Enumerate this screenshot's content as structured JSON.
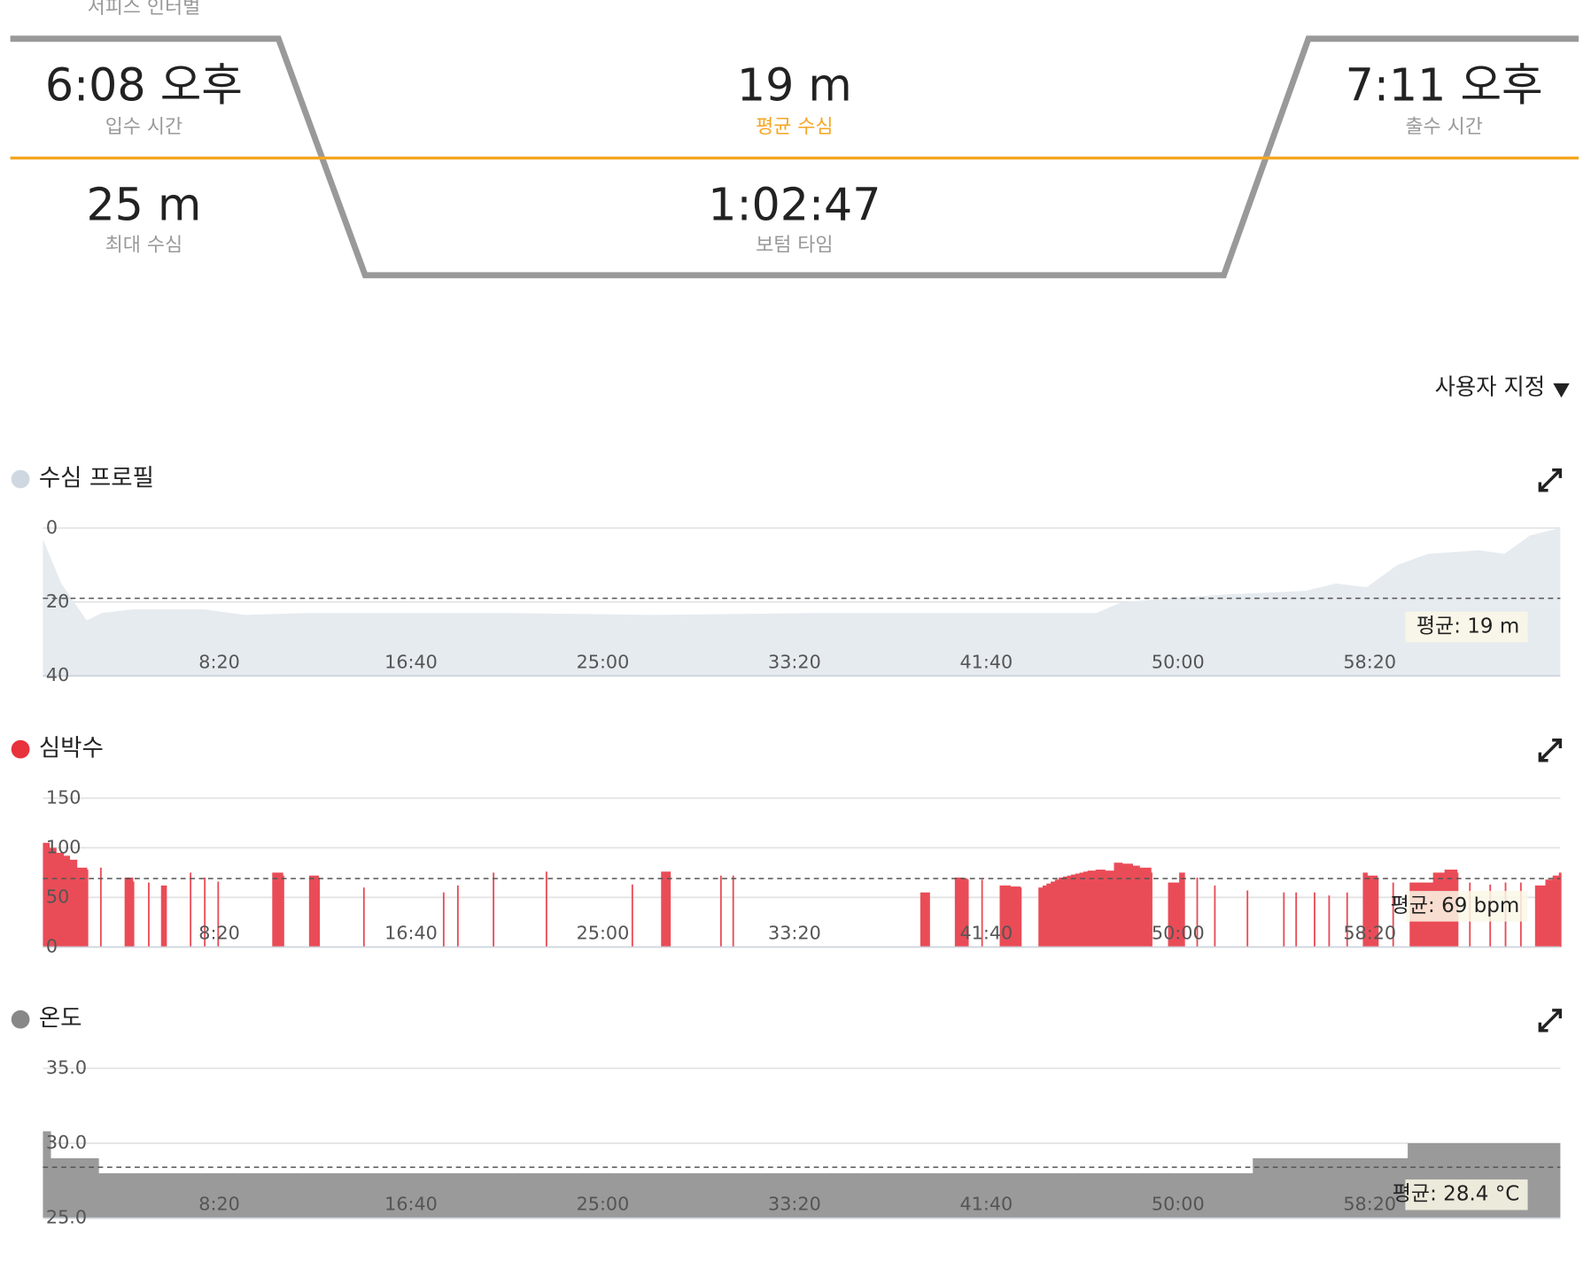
{
  "summary": {
    "surface_interval_label": "서피스 인터벌",
    "items": [
      {
        "value": "6:08 오후",
        "label": "입수 시간"
      },
      {
        "value": "19 m",
        "label": "평균 수심"
      },
      {
        "value": "7:11 오후",
        "label": "출수 시간"
      },
      {
        "value": "25 m",
        "label": "최대 수심"
      },
      {
        "value": "1:02:47",
        "label": "보텀 타임"
      }
    ]
  },
  "custom_menu": "사용자 지정",
  "chart_data": [
    {
      "type": "area",
      "title": "수심 프로필",
      "color": "#e6ebf0",
      "dot_color": "#cfd8e0",
      "reversed": true,
      "x": [
        40,
        88,
        154,
        194,
        274,
        460,
        566,
        726,
        992,
        1258,
        1630,
        2056,
        2588,
        2787,
        2854,
        3120,
        3332,
        3412,
        3492,
        3572,
        3652,
        3785,
        3851,
        3918,
        3997
      ],
      "values": [
        3,
        15,
        25,
        23,
        22,
        22,
        23.5,
        23,
        23,
        23,
        23.5,
        23,
        23,
        23,
        20,
        18,
        17,
        15,
        16,
        10,
        7,
        6,
        7,
        2,
        0
      ],
      "xlim": [
        40,
        3997
      ],
      "ylim": [
        0,
        40
      ],
      "yticks": [
        0,
        20,
        40
      ],
      "xticks": [
        {
          "value": 500,
          "label": "8:20"
        },
        {
          "value": 1000,
          "label": "16:40"
        },
        {
          "value": 1500,
          "label": "25:00"
        },
        {
          "value": 2000,
          "label": "33:20"
        },
        {
          "value": 2500,
          "label": "41:40"
        },
        {
          "value": 3000,
          "label": "50:00"
        },
        {
          "value": 3500,
          "label": "58:20"
        }
      ],
      "average": 19,
      "average_label": "평균: 19 m"
    },
    {
      "type": "bar",
      "title": "심박수",
      "color": "#ea4c57",
      "dot_color": "#e8323c",
      "x": [
        40,
        56,
        74,
        93,
        109,
        128,
        154,
        189,
        253,
        274,
        314,
        348,
        359,
        423,
        460,
        495,
        638,
        665,
        734,
        758,
        875,
        1083,
        1120,
        1213,
        1351,
        1575,
        1652,
        1673,
        1806,
        1838,
        2328,
        2349,
        2418,
        2429,
        2439,
        2450,
        2487,
        2535,
        2548,
        2562,
        2575,
        2588,
        2636,
        2647,
        2657,
        2668,
        2679,
        2689,
        2700,
        2711,
        2721,
        2732,
        2743,
        2753,
        2764,
        2774,
        2785,
        2796,
        2809,
        2833,
        2854,
        2881,
        2899,
        2929,
        2974,
        3003,
        3014,
        3048,
        3094,
        3179,
        3274,
        3306,
        3354,
        3392,
        3439,
        3482,
        3493,
        3519,
        3559,
        3604,
        3634,
        3665,
        3684,
        3695,
        3705,
        3727,
        3759,
        3812,
        3852,
        3892,
        3931,
        3958,
        3977,
        3993
      ],
      "values": [
        105,
        100,
        95,
        92,
        88,
        80,
        78,
        80,
        70,
        66,
        65,
        62,
        62,
        75,
        70,
        66,
        75,
        72,
        72,
        70,
        60,
        55,
        62,
        75,
        76,
        63,
        76,
        76,
        72,
        72,
        55,
        55,
        70,
        70,
        69,
        68,
        68,
        62,
        62,
        61,
        61,
        60,
        60,
        62,
        64,
        66,
        68,
        70,
        71,
        72,
        73,
        74,
        75,
        76,
        77,
        77,
        78,
        78,
        77,
        85,
        84,
        82,
        80,
        75,
        65,
        75,
        75,
        70,
        62,
        57,
        55,
        55,
        55,
        52,
        55,
        75,
        72,
        70,
        65,
        65,
        65,
        75,
        75,
        78,
        78,
        75,
        65,
        63,
        65,
        65,
        62,
        68,
        72,
        75
      ],
      "xlim": [
        40,
        3997
      ],
      "ylim": [
        0,
        150
      ],
      "yticks": [
        0,
        50,
        100,
        150
      ],
      "xticks": [
        {
          "value": 500,
          "label": "8:20"
        },
        {
          "value": 1000,
          "label": "16:40"
        },
        {
          "value": 1500,
          "label": "25:00"
        },
        {
          "value": 2000,
          "label": "33:20"
        },
        {
          "value": 2500,
          "label": "41:40"
        },
        {
          "value": 3000,
          "label": "50:00"
        },
        {
          "value": 3500,
          "label": "58:20"
        }
      ],
      "average": 69,
      "average_label": "평균: 69 bpm"
    },
    {
      "type": "step-area",
      "title": "온도",
      "color": "#9a9a9a",
      "dot_color": "#888888",
      "x": [
        40,
        61,
        186,
        3195,
        3599,
        3997
      ],
      "values": [
        30.8,
        29.0,
        28.0,
        29.0,
        30.0,
        30.0
      ],
      "xlim": [
        40,
        3997
      ],
      "ylim": [
        25,
        35
      ],
      "yticks": [
        {
          "value": 25,
          "label": "25.0"
        },
        {
          "value": 30,
          "label": "30.0"
        },
        {
          "value": 35,
          "label": "35.0"
        }
      ],
      "xticks": [
        {
          "value": 500,
          "label": "8:20"
        },
        {
          "value": 1000,
          "label": "16:40"
        },
        {
          "value": 1500,
          "label": "25:00"
        },
        {
          "value": 2000,
          "label": "33:20"
        },
        {
          "value": 2500,
          "label": "41:40"
        },
        {
          "value": 3000,
          "label": "50:00"
        },
        {
          "value": 3500,
          "label": "58:20"
        }
      ],
      "average": 28.4,
      "average_label": "평균: 28.4 °C"
    }
  ]
}
